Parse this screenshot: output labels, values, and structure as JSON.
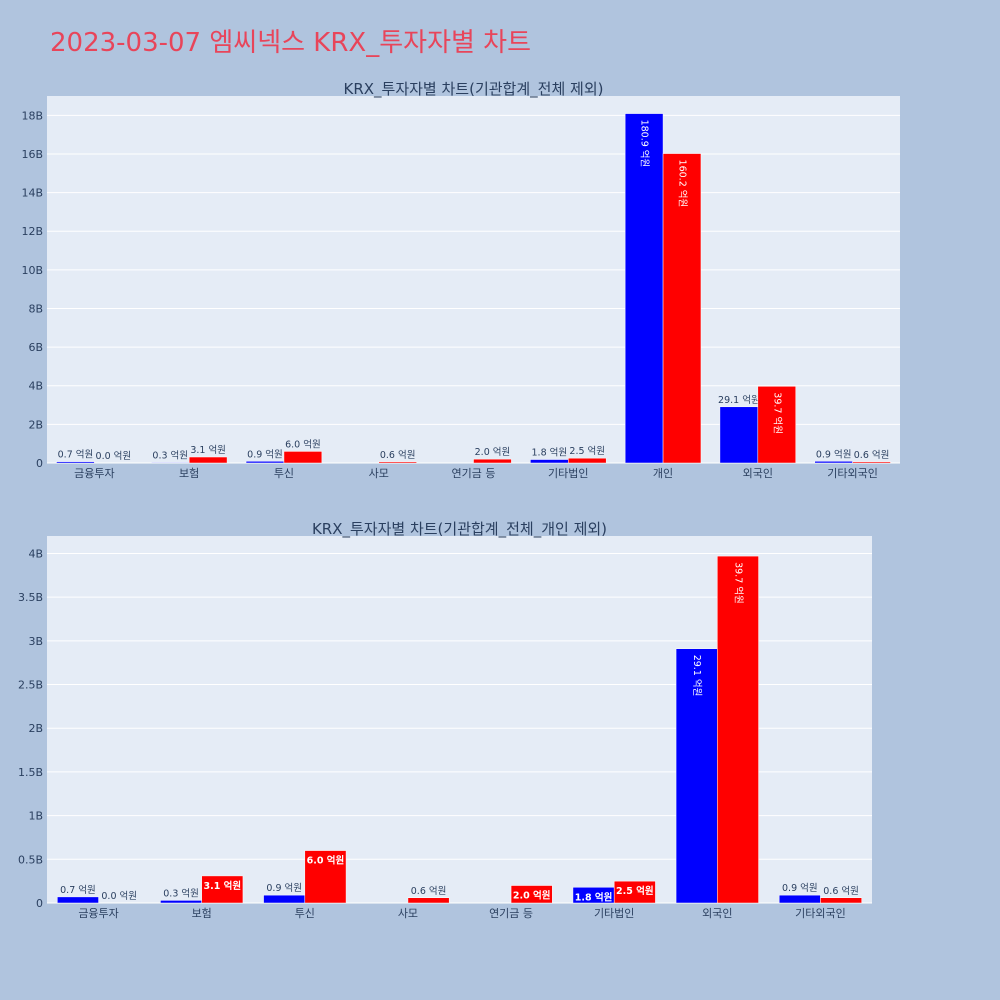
{
  "page": {
    "title": "2023-03-07 엠씨넥스 KRX_투자자별 차트",
    "background": "#b0c4de",
    "title_color": "#e8455a"
  },
  "chart_data": [
    {
      "type": "bar",
      "title": "KRX_투자자별 차트(기관합계_전체 제외)",
      "categories": [
        "금융투자",
        "보험",
        "투신",
        "사모",
        "연기금 등",
        "기타법인",
        "개인",
        "외국인",
        "기타외국인"
      ],
      "ylim": [
        0,
        19
      ],
      "y_ticks": [
        0,
        2,
        4,
        6,
        8,
        10,
        12,
        14,
        16,
        18
      ],
      "y_tick_labels": [
        "0",
        "2B",
        "4B",
        "6B",
        "8B",
        "10B",
        "12B",
        "14B",
        "16B",
        "18B"
      ],
      "grid": true,
      "legend": "none",
      "series": [
        {
          "color": "#0000ff",
          "values": [
            0.07,
            0.03,
            0.09,
            0,
            0,
            0.18,
            18.09,
            2.91,
            0.09
          ],
          "labels": [
            "0.7 억원",
            "0.3 억원",
            "0.9 억원",
            "",
            "",
            "1.8 억원",
            "180.9 억원",
            "29.1 억원",
            "0.9 억원"
          ]
        },
        {
          "color": "#ff0000",
          "values": [
            0.0,
            0.31,
            0.6,
            0.06,
            0.2,
            0.25,
            16.02,
            3.97,
            0.06
          ],
          "labels": [
            "0.0 억원",
            "3.1 억원",
            "6.0 억원",
            "0.6 억원",
            "2.0 억원",
            "2.5 억원",
            "160.2 억원",
            "39.7 억원",
            "0.6 억원"
          ]
        }
      ]
    },
    {
      "type": "bar",
      "title": "KRX_투자자별 차트(기관합계_전체_개인 제외)",
      "categories": [
        "금융투자",
        "보험",
        "투신",
        "사모",
        "연기금 등",
        "기타법인",
        "외국인",
        "기타외국인"
      ],
      "ylim": [
        0,
        4.2
      ],
      "y_ticks": [
        0,
        0.5,
        1,
        1.5,
        2,
        2.5,
        3,
        3.5,
        4
      ],
      "y_tick_labels": [
        "0",
        "0.5B",
        "1B",
        "1.5B",
        "2B",
        "2.5B",
        "3B",
        "3.5B",
        "4B"
      ],
      "grid": true,
      "legend": "none",
      "series": [
        {
          "color": "#0000ff",
          "values": [
            0.07,
            0.03,
            0.09,
            0,
            0,
            0.18,
            2.91,
            0.09
          ],
          "labels": [
            "0.7 억원",
            "0.3 억원",
            "0.9 억원",
            "",
            "",
            "1.8 억원",
            "29.1 억원",
            "0.9 억원"
          ]
        },
        {
          "color": "#ff0000",
          "values": [
            0.0,
            0.31,
            0.6,
            0.06,
            0.2,
            0.25,
            3.97,
            0.06
          ],
          "labels": [
            "0.0 억원",
            "3.1 억원",
            "6.0 억원",
            "0.6 억원",
            "2.0 억원",
            "2.5 억원",
            "39.7 억원",
            "0.6 억원"
          ]
        }
      ]
    }
  ]
}
